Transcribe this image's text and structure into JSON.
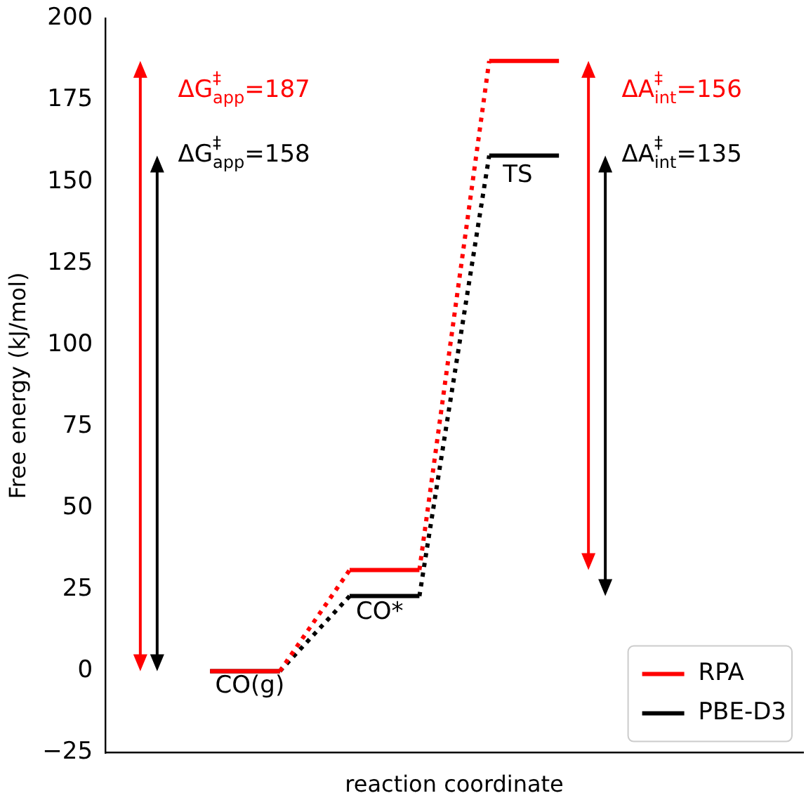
{
  "chart_data": {
    "type": "line",
    "xlabel": "reaction coordinate",
    "ylabel": "Free energy (kJ/mol)",
    "categories": [
      null,
      null,
      null,
      null,
      null,
      null,
      null,
      null,
      null,
      null
    ],
    "ylim": [
      -25,
      200
    ],
    "yticks": [
      {
        "value": -25,
        "label": "−25"
      },
      0,
      25,
      50,
      75,
      100,
      125,
      150,
      175,
      200
    ],
    "tick_labels": "y",
    "grid": false,
    "legend": "bottom right",
    "line_style": "solid",
    "marker": "none",
    "series": [
      {
        "name": "RPA",
        "color": "#ff0000",
        "values": [
          null,
          0,
          0,
          31,
          31,
          187,
          187,
          null,
          null,
          null
        ]
      },
      {
        "name": "PBE-D3",
        "color": "#000000",
        "values": [
          null,
          0,
          0,
          23,
          23,
          158,
          158,
          null,
          null,
          null
        ]
      }
    ],
    "annotations": [
      "ΔG$^{‡}$$_{app}$=187",
      "ΔG$^{‡}$$_{app}$=158",
      "ΔA$^{‡}$$_{int}$=156",
      "ΔA$^{‡}$$_{int}$=135",
      "CO(g)",
      "CO*",
      "TS"
    ]
  }
}
